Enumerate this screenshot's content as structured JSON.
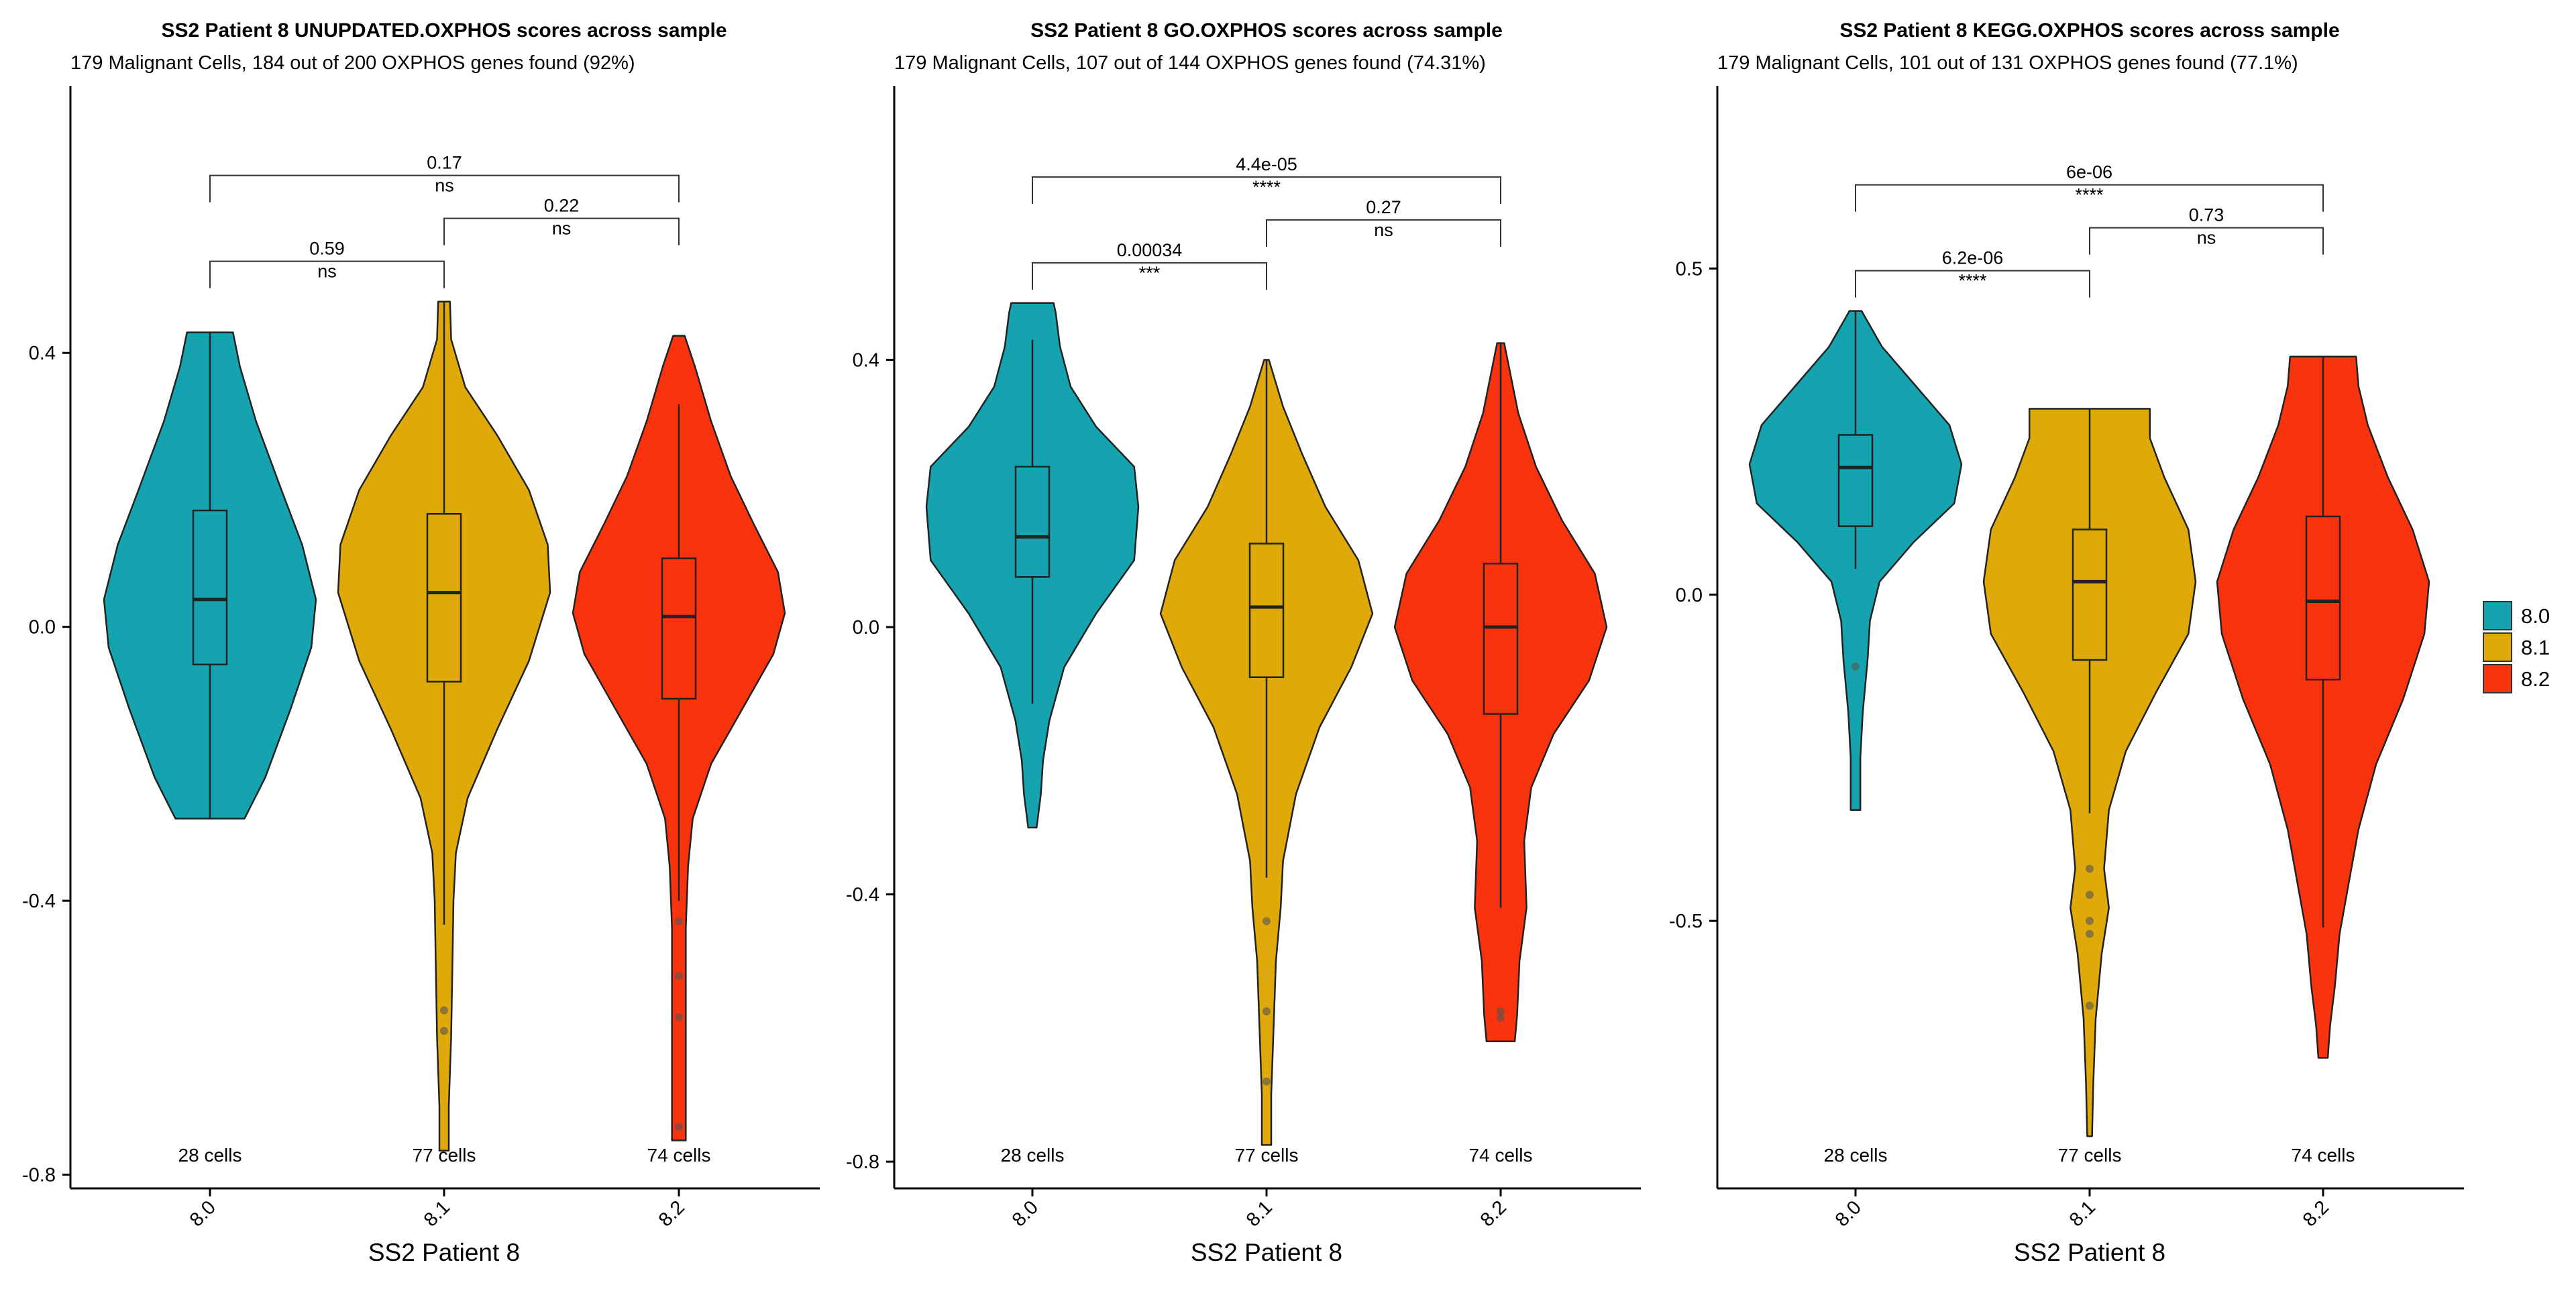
{
  "colors": {
    "8.0": "#16a3b0",
    "8.1": "#dfa90a",
    "8.2": "#f8330d"
  },
  "legend": {
    "items": [
      "8.0",
      "8.1",
      "8.2"
    ]
  },
  "chart_data": [
    {
      "type": "violin",
      "title": "SS2 Patient 8 UNUPDATED.OXPHOS scores across sample",
      "subtitle": "179 Malignant Cells, 184 out of 200 OXPHOS genes found (92%)",
      "xlabel": "SS2 Patient 8",
      "ylabel": "",
      "ylim": [
        -0.82,
        0.79
      ],
      "yticks": [
        -0.8,
        -0.4,
        0.0,
        0.4
      ],
      "ytick_labels": [
        "-0.8",
        "-0.4",
        "0.0",
        "0.4"
      ],
      "categories": [
        "8.0",
        "8.1",
        "8.2"
      ],
      "cell_counts": [
        "28 cells",
        "77 cells",
        "74 cells"
      ],
      "groups": [
        {
          "name": "8.0",
          "min": -0.28,
          "q1": -0.055,
          "median": 0.04,
          "q3": 0.17,
          "max": 0.43,
          "whisker_low": -0.28,
          "whisker_high": 0.43,
          "outliers": [],
          "density": [
            [
              -0.28,
              0.3
            ],
            [
              -0.22,
              0.48
            ],
            [
              -0.12,
              0.7
            ],
            [
              -0.03,
              0.88
            ],
            [
              0.04,
              0.92
            ],
            [
              0.12,
              0.8
            ],
            [
              0.2,
              0.62
            ],
            [
              0.3,
              0.4
            ],
            [
              0.38,
              0.26
            ],
            [
              0.43,
              0.2
            ]
          ]
        },
        {
          "name": "8.1",
          "min": -0.765,
          "q1": -0.08,
          "median": 0.05,
          "q3": 0.165,
          "max": 0.475,
          "whisker_low": -0.435,
          "whisker_high": 0.475,
          "outliers": [
            -0.56,
            -0.59
          ],
          "density": [
            [
              -0.765,
              0.04
            ],
            [
              -0.7,
              0.04
            ],
            [
              -0.6,
              0.06
            ],
            [
              -0.5,
              0.07
            ],
            [
              -0.4,
              0.08
            ],
            [
              -0.33,
              0.1
            ],
            [
              -0.25,
              0.2
            ],
            [
              -0.15,
              0.45
            ],
            [
              -0.05,
              0.72
            ],
            [
              0.05,
              0.9
            ],
            [
              0.12,
              0.88
            ],
            [
              0.2,
              0.72
            ],
            [
              0.28,
              0.45
            ],
            [
              0.35,
              0.18
            ],
            [
              0.42,
              0.06
            ],
            [
              0.475,
              0.05
            ]
          ]
        },
        {
          "name": "8.2",
          "min": -0.75,
          "q1": -0.105,
          "median": 0.015,
          "q3": 0.1,
          "max": 0.425,
          "whisker_low": -0.4,
          "whisker_high": 0.325,
          "outliers": [
            -0.43,
            -0.51,
            -0.57,
            -0.73
          ],
          "density": [
            [
              -0.75,
              0.06
            ],
            [
              -0.7,
              0.06
            ],
            [
              -0.62,
              0.06
            ],
            [
              -0.52,
              0.06
            ],
            [
              -0.44,
              0.06
            ],
            [
              -0.35,
              0.08
            ],
            [
              -0.28,
              0.12
            ],
            [
              -0.2,
              0.28
            ],
            [
              -0.12,
              0.55
            ],
            [
              -0.04,
              0.82
            ],
            [
              0.02,
              0.92
            ],
            [
              0.08,
              0.86
            ],
            [
              0.15,
              0.65
            ],
            [
              0.22,
              0.45
            ],
            [
              0.3,
              0.28
            ],
            [
              0.38,
              0.14
            ],
            [
              0.425,
              0.05
            ]
          ]
        }
      ],
      "comparisons": [
        {
          "groups": [
            "8.0",
            "8.1"
          ],
          "p": "0.59",
          "label": "ns",
          "level": 1
        },
        {
          "groups": [
            "8.1",
            "8.2"
          ],
          "p": "0.22",
          "label": "ns",
          "level": 2
        },
        {
          "groups": [
            "8.0",
            "8.2"
          ],
          "p": "0.17",
          "label": "ns",
          "level": 3
        }
      ]
    },
    {
      "type": "violin",
      "title": "SS2 Patient 8 GO.OXPHOS scores across sample",
      "subtitle": "179 Malignant Cells, 107 out of 144 OXPHOS genes found (74.31%)",
      "xlabel": "SS2 Patient 8",
      "ylabel": "",
      "ylim": [
        -0.84,
        0.81
      ],
      "yticks": [
        -0.8,
        -0.4,
        0.0,
        0.4
      ],
      "ytick_labels": [
        "-0.8",
        "-0.4",
        "0.0",
        "0.4"
      ],
      "categories": [
        "8.0",
        "8.1",
        "8.2"
      ],
      "cell_counts": [
        "28 cells",
        "77 cells",
        "74 cells"
      ],
      "groups": [
        {
          "name": "8.0",
          "min": -0.3,
          "q1": 0.075,
          "median": 0.135,
          "q3": 0.24,
          "max": 0.485,
          "whisker_low": -0.115,
          "whisker_high": 0.43,
          "outliers": [],
          "density": [
            [
              -0.3,
              0.04
            ],
            [
              -0.25,
              0.08
            ],
            [
              -0.2,
              0.1
            ],
            [
              -0.14,
              0.16
            ],
            [
              -0.06,
              0.3
            ],
            [
              0.02,
              0.6
            ],
            [
              0.1,
              0.96
            ],
            [
              0.18,
              1.0
            ],
            [
              0.24,
              0.96
            ],
            [
              0.3,
              0.6
            ],
            [
              0.36,
              0.36
            ],
            [
              0.42,
              0.26
            ],
            [
              0.47,
              0.22
            ],
            [
              0.485,
              0.2
            ]
          ]
        },
        {
          "name": "8.1",
          "min": -0.775,
          "q1": -0.075,
          "median": 0.03,
          "q3": 0.125,
          "max": 0.4,
          "whisker_low": -0.375,
          "whisker_high": 0.4,
          "outliers": [
            -0.44,
            -0.575,
            -0.68
          ],
          "density": [
            [
              -0.775,
              0.04
            ],
            [
              -0.7,
              0.04
            ],
            [
              -0.6,
              0.06
            ],
            [
              -0.5,
              0.08
            ],
            [
              -0.42,
              0.12
            ],
            [
              -0.35,
              0.14
            ],
            [
              -0.25,
              0.25
            ],
            [
              -0.15,
              0.45
            ],
            [
              -0.06,
              0.72
            ],
            [
              0.02,
              0.9
            ],
            [
              0.1,
              0.78
            ],
            [
              0.18,
              0.5
            ],
            [
              0.26,
              0.3
            ],
            [
              0.33,
              0.14
            ],
            [
              0.4,
              0.02
            ]
          ]
        },
        {
          "name": "8.2",
          "min": -0.62,
          "q1": -0.13,
          "median": 0.0,
          "q3": 0.095,
          "max": 0.425,
          "whisker_low": -0.42,
          "whisker_high": 0.425,
          "outliers": [
            -0.575,
            -0.585
          ],
          "density": [
            [
              -0.62,
              0.12
            ],
            [
              -0.58,
              0.14
            ],
            [
              -0.5,
              0.16
            ],
            [
              -0.42,
              0.22
            ],
            [
              -0.32,
              0.2
            ],
            [
              -0.24,
              0.26
            ],
            [
              -0.16,
              0.45
            ],
            [
              -0.08,
              0.75
            ],
            [
              0.0,
              0.9
            ],
            [
              0.08,
              0.8
            ],
            [
              0.16,
              0.52
            ],
            [
              0.24,
              0.3
            ],
            [
              0.32,
              0.15
            ],
            [
              0.425,
              0.03
            ]
          ]
        }
      ],
      "comparisons": [
        {
          "groups": [
            "8.0",
            "8.1"
          ],
          "p": "0.00034",
          "label": "***",
          "level": 1
        },
        {
          "groups": [
            "8.1",
            "8.2"
          ],
          "p": "0.27",
          "label": "ns",
          "level": 2
        },
        {
          "groups": [
            "8.0",
            "8.2"
          ],
          "p": "4.4e-05",
          "label": "****",
          "level": 3
        }
      ]
    },
    {
      "type": "violin",
      "title": "SS2 Patient 8 KEGG.OXPHOS scores across sample",
      "subtitle": "179 Malignant Cells, 101 out of 131 OXPHOS genes found (77.1%)",
      "xlabel": "SS2 Patient 8",
      "ylabel": "",
      "ylim": [
        -0.91,
        0.78
      ],
      "yticks": [
        -0.5,
        0.0,
        0.5
      ],
      "ytick_labels": [
        "-0.5",
        "0.0",
        "0.5"
      ],
      "categories": [
        "8.0",
        "8.1",
        "8.2"
      ],
      "cell_counts": [
        "28 cells",
        "77 cells",
        "74 cells"
      ],
      "groups": [
        {
          "name": "8.0",
          "min": -0.33,
          "q1": 0.105,
          "median": 0.195,
          "q3": 0.245,
          "max": 0.435,
          "whisker_low": 0.04,
          "whisker_high": 0.435,
          "outliers": [
            -0.11
          ],
          "density": [
            [
              -0.33,
              0.04
            ],
            [
              -0.25,
              0.04
            ],
            [
              -0.18,
              0.06
            ],
            [
              -0.1,
              0.1
            ],
            [
              -0.04,
              0.12
            ],
            [
              0.02,
              0.2
            ],
            [
              0.08,
              0.48
            ],
            [
              0.14,
              0.82
            ],
            [
              0.2,
              0.88
            ],
            [
              0.26,
              0.78
            ],
            [
              0.32,
              0.5
            ],
            [
              0.38,
              0.22
            ],
            [
              0.435,
              0.05
            ]
          ]
        },
        {
          "name": "8.1",
          "min": -0.83,
          "q1": -0.1,
          "median": 0.02,
          "q3": 0.1,
          "max": 0.285,
          "whisker_low": -0.335,
          "whisker_high": 0.285,
          "outliers": [
            -0.42,
            -0.46,
            -0.5,
            -0.52,
            -0.63
          ],
          "density": [
            [
              -0.83,
              0.02
            ],
            [
              -0.75,
              0.03
            ],
            [
              -0.65,
              0.05
            ],
            [
              -0.55,
              0.1
            ],
            [
              -0.48,
              0.16
            ],
            [
              -0.42,
              0.12
            ],
            [
              -0.33,
              0.16
            ],
            [
              -0.24,
              0.3
            ],
            [
              -0.15,
              0.55
            ],
            [
              -0.06,
              0.82
            ],
            [
              0.02,
              0.88
            ],
            [
              0.1,
              0.82
            ],
            [
              0.18,
              0.62
            ],
            [
              0.24,
              0.5
            ],
            [
              0.285,
              0.5
            ]
          ]
        },
        {
          "name": "8.2",
          "min": -0.71,
          "q1": -0.13,
          "median": -0.01,
          "q3": 0.12,
          "max": 0.365,
          "whisker_low": -0.51,
          "whisker_high": 0.365,
          "outliers": [],
          "density": [
            [
              -0.71,
              0.04
            ],
            [
              -0.66,
              0.06
            ],
            [
              -0.6,
              0.1
            ],
            [
              -0.52,
              0.14
            ],
            [
              -0.44,
              0.22
            ],
            [
              -0.36,
              0.3
            ],
            [
              -0.26,
              0.45
            ],
            [
              -0.16,
              0.68
            ],
            [
              -0.06,
              0.86
            ],
            [
              0.02,
              0.9
            ],
            [
              0.1,
              0.76
            ],
            [
              0.18,
              0.55
            ],
            [
              0.26,
              0.38
            ],
            [
              0.32,
              0.3
            ],
            [
              0.365,
              0.28
            ]
          ]
        }
      ],
      "comparisons": [
        {
          "groups": [
            "8.0",
            "8.1"
          ],
          "p": "6.2e-06",
          "label": "****",
          "level": 1
        },
        {
          "groups": [
            "8.1",
            "8.2"
          ],
          "p": "0.73",
          "label": "ns",
          "level": 2
        },
        {
          "groups": [
            "8.0",
            "8.2"
          ],
          "p": "6e-06",
          "label": "****",
          "level": 3
        }
      ]
    }
  ]
}
